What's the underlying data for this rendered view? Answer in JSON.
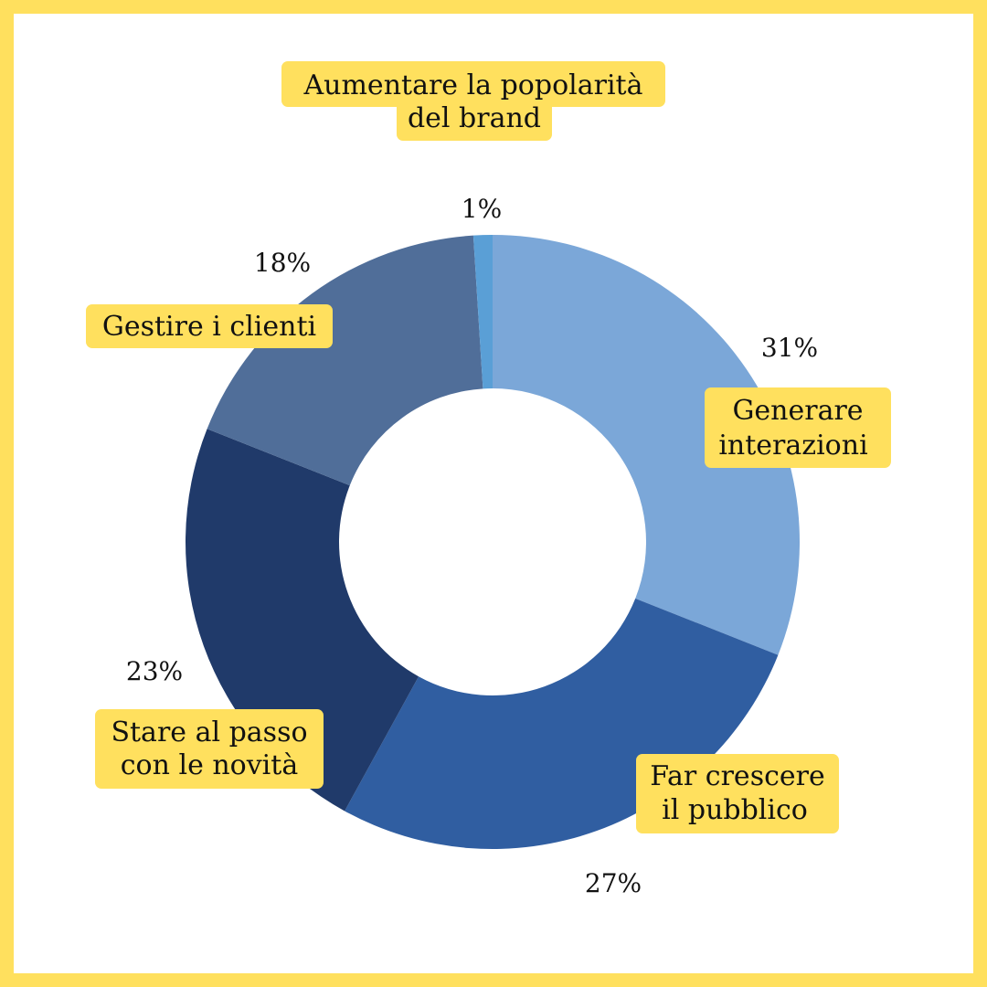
{
  "chart_data": {
    "type": "pie",
    "donut": true,
    "categories": [
      "Generare interazioni",
      "Far crescere il pubblico",
      "Stare al passo con le novità",
      "Gestire i clienti",
      "Aumentare la popolarità del brand"
    ],
    "values": [
      31,
      27,
      23,
      18,
      1
    ],
    "value_labels": [
      "31%",
      "27%",
      "23%",
      "18%",
      "1%"
    ],
    "category_label_lines": [
      [
        "Generare",
        "interazioni"
      ],
      [
        "Far crescere",
        "il pubblico"
      ],
      [
        "Stare al passo",
        "con le novità"
      ],
      [
        "Gestire i clienti"
      ],
      [
        "Aumentare la popolarità",
        "del brand"
      ]
    ],
    "colors": [
      "#7ba7d8",
      "#305ea1",
      "#203a6a",
      "#506e99",
      "#5a9fd6"
    ],
    "label_highlight_color": "#ffe05e",
    "start": "top, clockwise",
    "title": "",
    "legend": "none"
  },
  "frame": {
    "border_color": "#ffe05e"
  }
}
